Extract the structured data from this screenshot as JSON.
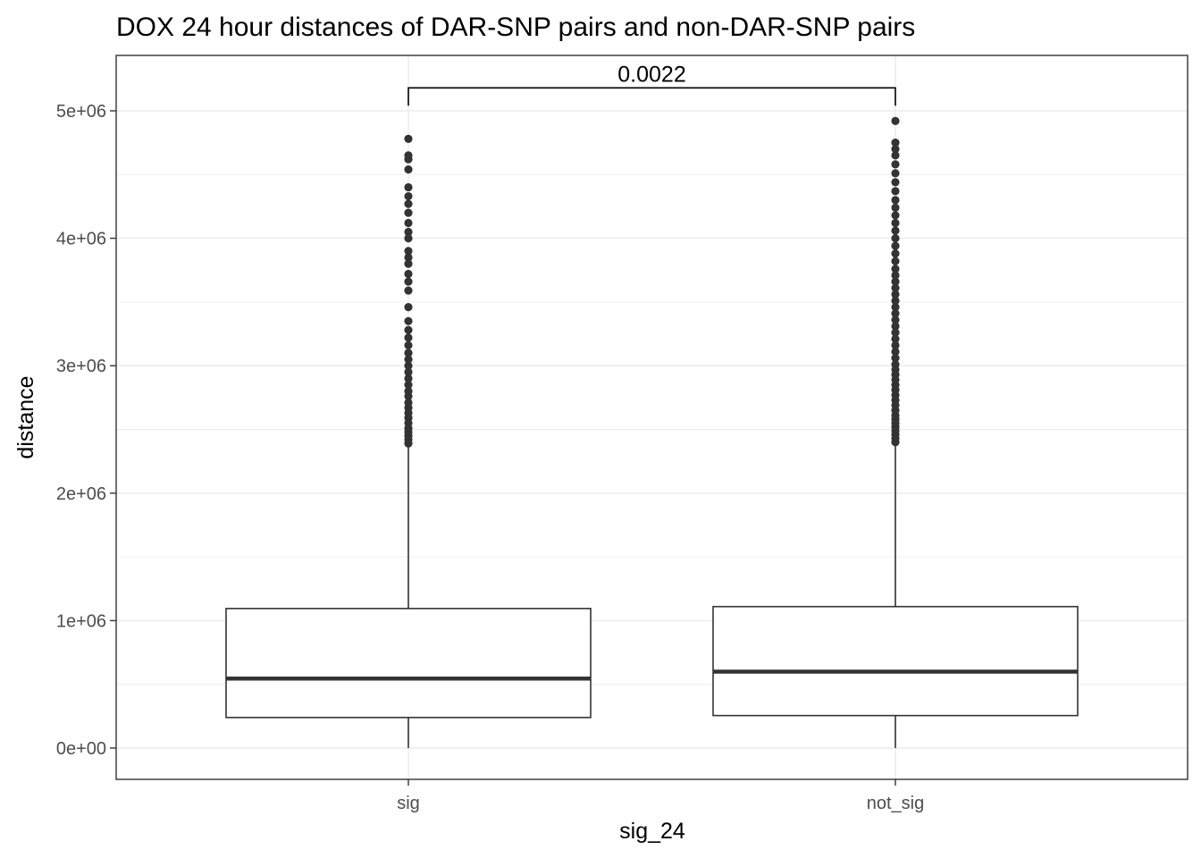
{
  "chart_data": {
    "type": "boxplot",
    "title": "DOX 24 hour distances of DAR-SNP pairs and non-DAR-SNP pairs",
    "xlabel": "sig_24",
    "ylabel": "distance",
    "ylim": [
      -250000,
      5400000
    ],
    "y_ticks": [
      0,
      1000000,
      2000000,
      3000000,
      4000000,
      5000000
    ],
    "y_tick_labels": [
      "0e+00",
      "1e+06",
      "2e+06",
      "3e+06",
      "4e+06",
      "5e+06"
    ],
    "grid": true,
    "categories": [
      "sig",
      "not_sig"
    ],
    "boxes": [
      {
        "category": "sig",
        "min": 0,
        "q1": 240000,
        "median": 545000,
        "q3": 1095000,
        "whisker_high": 2370000,
        "outliers": [
          2390000,
          2420000,
          2450000,
          2480000,
          2510000,
          2550000,
          2590000,
          2630000,
          2670000,
          2710000,
          2760000,
          2800000,
          2850000,
          2900000,
          2950000,
          3000000,
          3050000,
          3100000,
          3160000,
          3220000,
          3280000,
          3350000,
          3460000,
          3590000,
          3660000,
          3720000,
          3800000,
          3850000,
          3900000,
          4000000,
          4050000,
          4120000,
          4200000,
          4270000,
          4330000,
          4400000,
          4540000,
          4620000,
          4650000,
          4780000
        ]
      },
      {
        "category": "not_sig",
        "min": 0,
        "q1": 255000,
        "median": 600000,
        "q3": 1110000,
        "whisker_high": 2390000,
        "outliers": [
          2400000,
          2430000,
          2460000,
          2490000,
          2520000,
          2550000,
          2580000,
          2610000,
          2650000,
          2690000,
          2730000,
          2770000,
          2810000,
          2850000,
          2890000,
          2930000,
          2970000,
          3010000,
          3060000,
          3110000,
          3160000,
          3210000,
          3260000,
          3310000,
          3360000,
          3410000,
          3460000,
          3510000,
          3560000,
          3610000,
          3660000,
          3710000,
          3760000,
          3820000,
          3880000,
          3940000,
          4000000,
          4060000,
          4120000,
          4180000,
          4240000,
          4300000,
          4370000,
          4440000,
          4510000,
          4580000,
          4650000,
          4700000,
          4750000,
          4920000
        ]
      }
    ],
    "comparison": {
      "from": "sig",
      "to": "not_sig",
      "y": 5180000,
      "tick_drop": 140000,
      "label": "0.0022"
    }
  }
}
